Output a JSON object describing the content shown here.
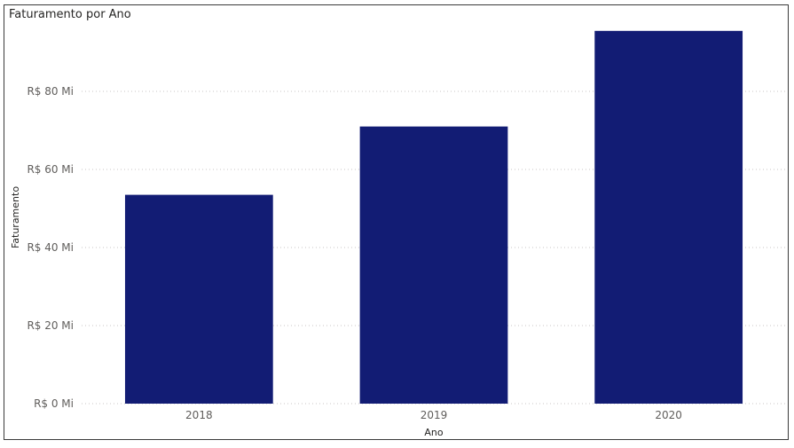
{
  "chart_data": {
    "type": "bar",
    "title": "Faturamento por Ano",
    "xlabel": "Ano",
    "ylabel": "Faturamento",
    "categories": [
      "2018",
      "2019",
      "2020"
    ],
    "values": [
      53.5,
      71,
      95.5
    ],
    "ylim": [
      0,
      100
    ],
    "yticks": [
      0,
      20,
      40,
      60,
      80
    ],
    "ytick_labels": [
      "R$ 0 Mi",
      "R$ 20 Mi",
      "R$ 40 Mi",
      "R$ 60 Mi",
      "R$ 80 Mi"
    ],
    "grid": true,
    "color": "#121C74"
  }
}
